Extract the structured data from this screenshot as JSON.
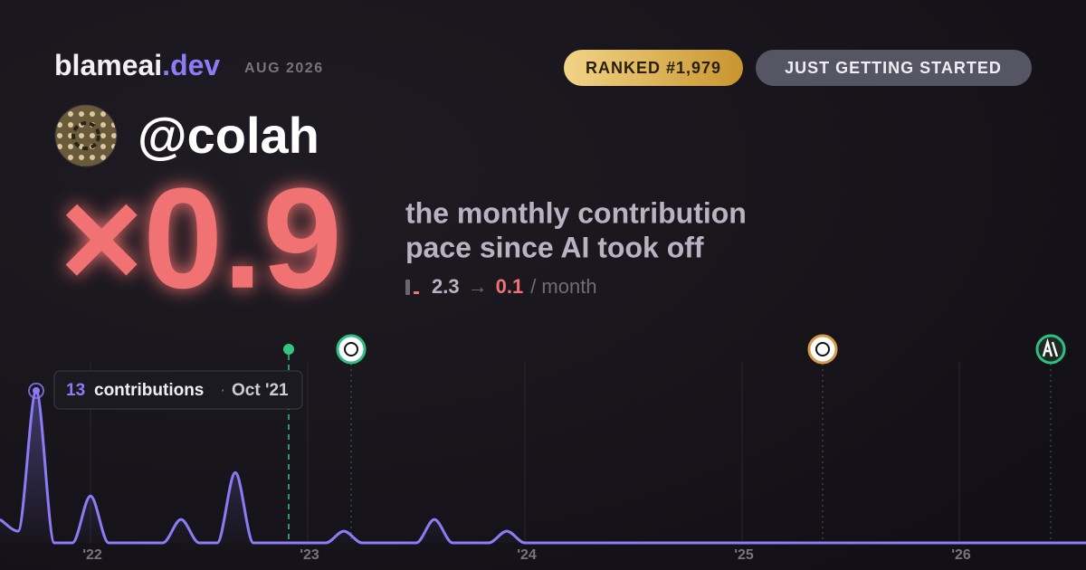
{
  "header": {
    "brand": "blameai",
    "brand_suffix": ".dev",
    "date": "AUG 2026",
    "rank": "RANKED #1,979",
    "status": "JUST GETTING STARTED"
  },
  "user": {
    "handle": "@colah"
  },
  "headline": {
    "multiplier": "×0.9",
    "description_lines": [
      "the monthly contribution",
      "pace since AI took off"
    ],
    "before": "2.3",
    "arrow": "→",
    "after": "0.1",
    "unit": "/ month"
  },
  "tooltip": {
    "label": "contributions",
    "separator": "·",
    "date": "Oct '21"
  },
  "chart_data": {
    "type": "line",
    "color": "#8b7cf6",
    "x": [
      2021.5833,
      2021.6667,
      2021.75,
      2021.8333,
      2021.9167,
      2022,
      2022.0833,
      2022.1667,
      2022.25,
      2022.3333,
      2022.4167,
      2022.5,
      2022.5833,
      2022.6667,
      2022.75,
      2022.8333,
      2022.9167,
      2023,
      2023.0833,
      2023.1667,
      2023.25,
      2023.3333,
      2023.4167,
      2023.5,
      2023.5833,
      2023.6667,
      2023.75,
      2023.8333,
      2023.9167,
      2024,
      2024.0833,
      2024.1667,
      2024.25,
      2024.3333,
      2024.4167,
      2024.5,
      2024.5833,
      2024.6667,
      2024.75,
      2024.8333,
      2024.9167,
      2025,
      2025.0833,
      2025.1667,
      2025.25,
      2025.3333,
      2025.4167,
      2025.5,
      2025.5833,
      2025.6667,
      2025.75,
      2025.8333,
      2025.9167,
      2026,
      2026.0833,
      2026.1667,
      2026.25,
      2026.3333,
      2026.4167,
      2026.5,
      2026.5833
    ],
    "values": [
      2,
      1,
      13,
      0,
      0,
      4,
      0,
      0,
      0,
      0,
      2,
      0,
      0,
      6,
      0,
      0,
      0,
      0,
      0,
      1,
      0,
      0,
      0,
      0,
      2,
      0,
      0,
      0,
      1,
      0,
      0,
      0,
      0,
      0,
      0,
      0,
      0,
      0,
      0,
      0,
      0,
      0,
      0,
      0,
      0,
      0,
      0,
      0,
      0,
      0,
      0,
      0,
      0,
      0,
      0,
      0,
      0,
      0,
      0,
      0,
      0
    ],
    "xlim": [
      2021.5833,
      2026.5833
    ],
    "ylim": [
      0,
      15
    ],
    "xticks": [
      {
        "value": 2022,
        "label": "'22"
      },
      {
        "value": 2023,
        "label": "'23"
      },
      {
        "value": 2024,
        "label": "'24"
      },
      {
        "value": 2025,
        "label": "'25"
      },
      {
        "value": 2026,
        "label": "'26"
      }
    ],
    "grid": true
  }
}
